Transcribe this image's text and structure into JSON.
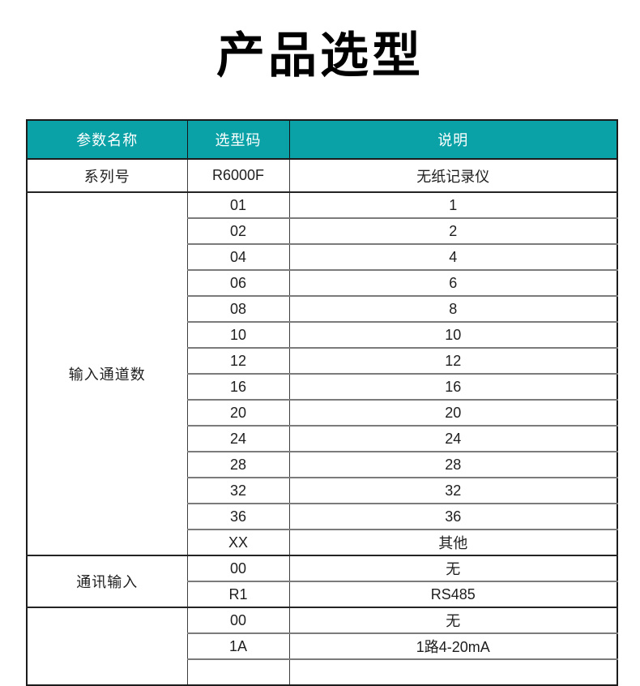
{
  "page": {
    "title": "产品选型"
  },
  "colors": {
    "header_bg": "#0ba2a7",
    "header_fg": "#ffffff"
  },
  "table": {
    "columns": [
      "参数名称",
      "选型码",
      "说明"
    ],
    "sections": [
      {
        "param": "系列号",
        "rows": [
          {
            "code": "R6000F",
            "desc": "无纸记录仪"
          }
        ]
      },
      {
        "param": "输入通道数",
        "rows": [
          {
            "code": "01",
            "desc": "1"
          },
          {
            "code": "02",
            "desc": "2"
          },
          {
            "code": "04",
            "desc": "4"
          },
          {
            "code": "06",
            "desc": "6"
          },
          {
            "code": "08",
            "desc": "8"
          },
          {
            "code": "10",
            "desc": "10"
          },
          {
            "code": "12",
            "desc": "12"
          },
          {
            "code": "16",
            "desc": "16"
          },
          {
            "code": "20",
            "desc": "20"
          },
          {
            "code": "24",
            "desc": "24"
          },
          {
            "code": "28",
            "desc": "28"
          },
          {
            "code": "32",
            "desc": "32"
          },
          {
            "code": "36",
            "desc": "36"
          },
          {
            "code": "XX",
            "desc": "其他"
          }
        ]
      },
      {
        "param": "通讯输入",
        "rows": [
          {
            "code": "00",
            "desc": "无"
          },
          {
            "code": "R1",
            "desc": "RS485"
          }
        ]
      },
      {
        "param": "",
        "rows": [
          {
            "code": "00",
            "desc": "无"
          },
          {
            "code": "1A",
            "desc": "1路4-20mA"
          }
        ]
      }
    ]
  }
}
